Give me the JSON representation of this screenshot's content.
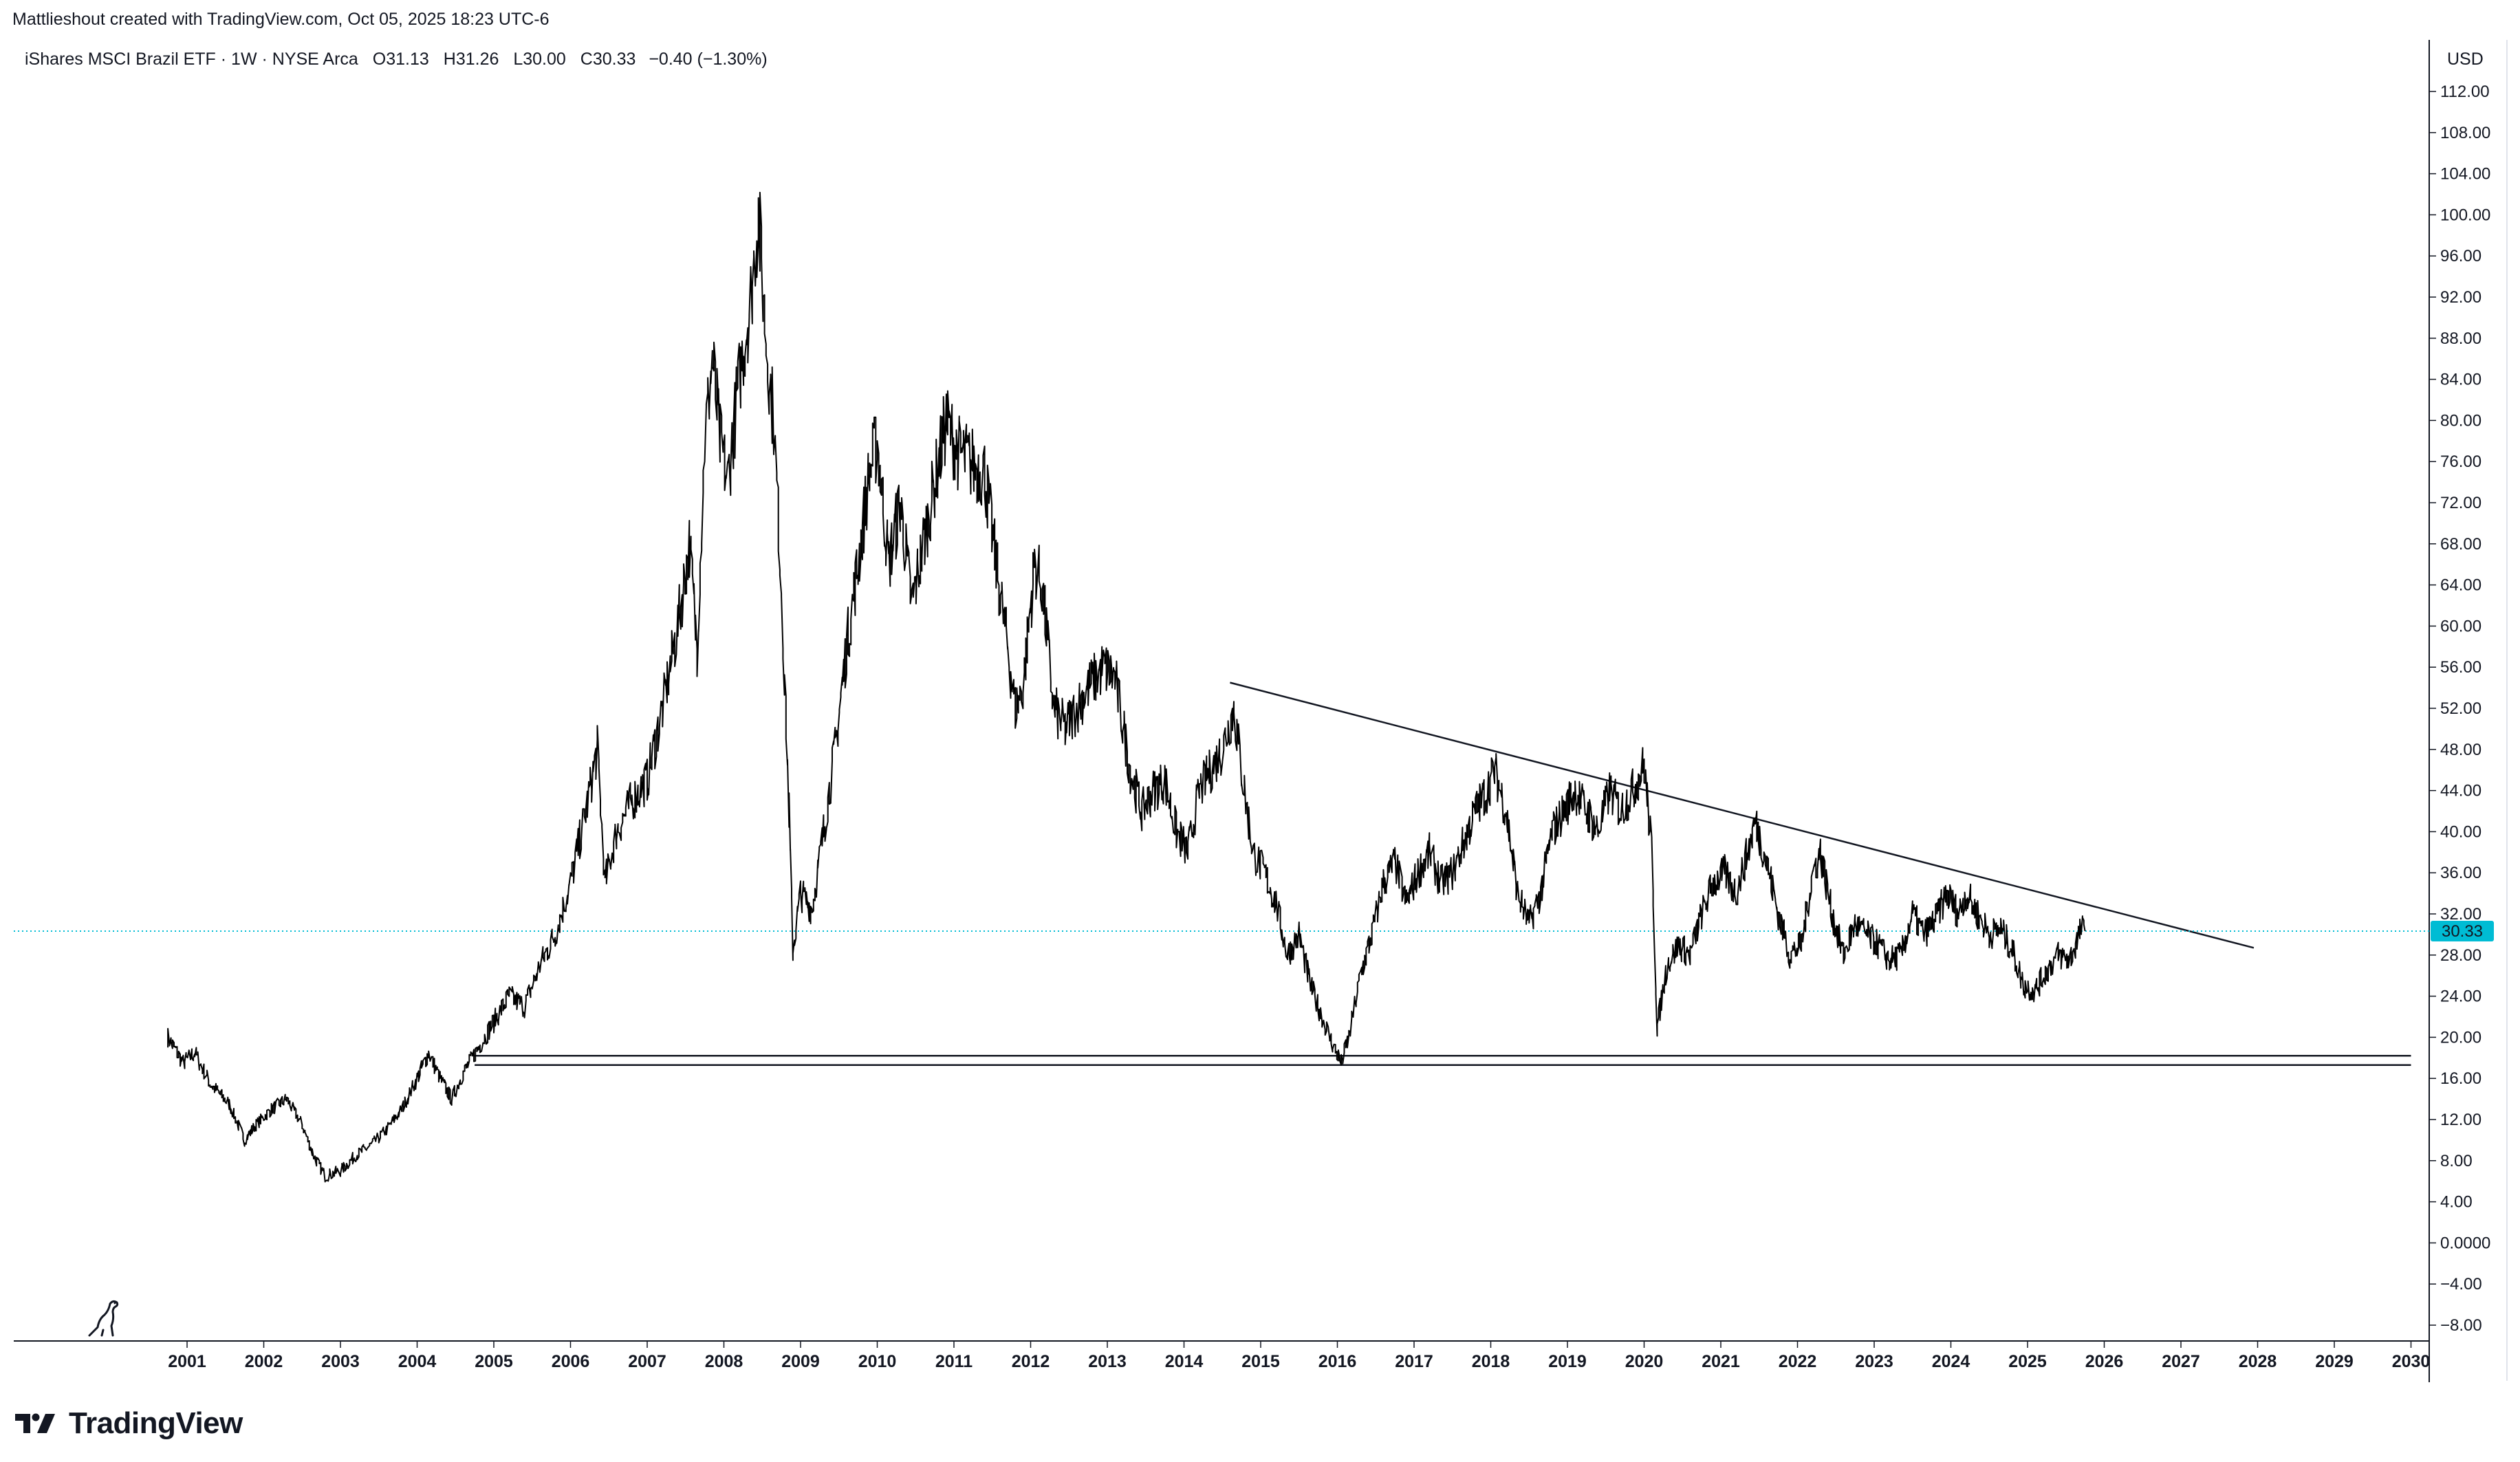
{
  "header": {
    "credit": "Mattlieshout created with TradingView.com, Oct 05, 2025 18:23 UTC-6"
  },
  "legend": {
    "symbol": "iShares MSCI Brazil ETF · 1W · NYSE Arca",
    "open_label": "O",
    "open": "31.13",
    "high_label": "H",
    "high": "31.26",
    "low_label": "L",
    "low": "30.00",
    "close_label": "C",
    "close": "30.33",
    "change": "−0.40 (−1.30%)"
  },
  "axis": {
    "currency": "USD",
    "last_price_label": "30.33"
  },
  "brand": {
    "name": "TradingView",
    "logo_icon": "tradingview-logo-icon",
    "footer_icon": "dinosaur-icon"
  },
  "colors": {
    "price_line": "#000000",
    "last_price_badge": "#00bcd4",
    "last_price_dotted": "#00bcd4",
    "grid_border": "#e0e3eb"
  },
  "chart_data": {
    "type": "line",
    "title": "iShares MSCI Brazil ETF · 1W · NYSE Arca",
    "xlabel": "",
    "ylabel": "USD",
    "xlim": [
      2000.0,
      2030.0
    ],
    "ylim": [
      -8,
      112
    ],
    "x_ticks": [
      "2001",
      "2002",
      "2003",
      "2004",
      "2005",
      "2006",
      "2007",
      "2008",
      "2009",
      "2010",
      "2011",
      "2012",
      "2013",
      "2014",
      "2015",
      "2016",
      "2017",
      "2018",
      "2019",
      "2020",
      "2021",
      "2022",
      "2023",
      "2024",
      "2025",
      "2026",
      "2027",
      "2028",
      "2029",
      "2030"
    ],
    "y_ticks": [
      "112.00",
      "108.00",
      "104.00",
      "100.00",
      "96.00",
      "92.00",
      "88.00",
      "84.00",
      "80.00",
      "76.00",
      "72.00",
      "68.00",
      "64.00",
      "60.00",
      "56.00",
      "52.00",
      "48.00",
      "44.00",
      "40.00",
      "36.00",
      "32.00",
      "28.00",
      "24.00",
      "20.00",
      "16.00",
      "12.00",
      "8.00",
      "4.00",
      "0.0000",
      "−4.00",
      "−8.00"
    ],
    "grid": false,
    "series": [
      {
        "name": "",
        "values": [
          [
            2000.75,
            20.0
          ],
          [
            2000.95,
            17.5
          ],
          [
            2001.1,
            18.5
          ],
          [
            2001.3,
            15.5
          ],
          [
            2001.55,
            13.5
          ],
          [
            2001.75,
            10.0
          ],
          [
            2001.9,
            11.5
          ],
          [
            2002.1,
            13.0
          ],
          [
            2002.3,
            14.0
          ],
          [
            2002.5,
            11.5
          ],
          [
            2002.65,
            8.5
          ],
          [
            2002.8,
            6.5
          ],
          [
            2003.0,
            7.0
          ],
          [
            2003.2,
            8.5
          ],
          [
            2003.4,
            9.5
          ],
          [
            2003.6,
            11.0
          ],
          [
            2003.8,
            13.0
          ],
          [
            2004.0,
            16.0
          ],
          [
            2004.15,
            18.5
          ],
          [
            2004.3,
            16.0
          ],
          [
            2004.45,
            14.0
          ],
          [
            2004.6,
            16.5
          ],
          [
            2004.8,
            19.0
          ],
          [
            2005.0,
            21.5
          ],
          [
            2005.2,
            24.0
          ],
          [
            2005.4,
            23.0
          ],
          [
            2005.6,
            27.0
          ],
          [
            2005.8,
            30.0
          ],
          [
            2006.0,
            35.0
          ],
          [
            2006.2,
            42.0
          ],
          [
            2006.35,
            48.0
          ],
          [
            2006.45,
            35.0
          ],
          [
            2006.6,
            40.0
          ],
          [
            2006.8,
            43.0
          ],
          [
            2007.0,
            45.0
          ],
          [
            2007.2,
            52.0
          ],
          [
            2007.4,
            60.0
          ],
          [
            2007.55,
            68.0
          ],
          [
            2007.65,
            58.0
          ],
          [
            2007.75,
            78.0
          ],
          [
            2007.85,
            86.0
          ],
          [
            2007.95,
            78.0
          ],
          [
            2008.05,
            74.0
          ],
          [
            2008.2,
            84.0
          ],
          [
            2008.35,
            92.0
          ],
          [
            2008.45,
            100.0
          ],
          [
            2008.55,
            88.0
          ],
          [
            2008.65,
            80.0
          ],
          [
            2008.75,
            64.0
          ],
          [
            2008.85,
            42.0
          ],
          [
            2008.9,
            28.5
          ],
          [
            2009.0,
            34.0
          ],
          [
            2009.15,
            32.5
          ],
          [
            2009.3,
            40.0
          ],
          [
            2009.45,
            48.0
          ],
          [
            2009.6,
            58.0
          ],
          [
            2009.75,
            66.0
          ],
          [
            2009.9,
            75.0
          ],
          [
            2010.0,
            78.0
          ],
          [
            2010.15,
            66.0
          ],
          [
            2010.3,
            72.0
          ],
          [
            2010.45,
            62.0
          ],
          [
            2010.6,
            68.0
          ],
          [
            2010.75,
            74.0
          ],
          [
            2010.9,
            80.0
          ],
          [
            2011.05,
            77.0
          ],
          [
            2011.2,
            76.0
          ],
          [
            2011.4,
            75.0
          ],
          [
            2011.55,
            66.0
          ],
          [
            2011.7,
            58.0
          ],
          [
            2011.8,
            52.0
          ],
          [
            2011.9,
            54.0
          ],
          [
            2012.05,
            66.0
          ],
          [
            2012.15,
            64.0
          ],
          [
            2012.3,
            52.0
          ],
          [
            2012.45,
            50.0
          ],
          [
            2012.6,
            52.0
          ],
          [
            2012.75,
            54.0
          ],
          [
            2012.95,
            56.0
          ],
          [
            2013.1,
            55.0
          ],
          [
            2013.3,
            46.0
          ],
          [
            2013.45,
            42.0
          ],
          [
            2013.6,
            44.0
          ],
          [
            2013.75,
            45.0
          ],
          [
            2013.9,
            40.0
          ],
          [
            2014.05,
            38.0
          ],
          [
            2014.2,
            44.0
          ],
          [
            2014.35,
            46.0
          ],
          [
            2014.5,
            48.0
          ],
          [
            2014.65,
            52.0
          ],
          [
            2014.75,
            46.0
          ],
          [
            2014.9,
            38.0
          ],
          [
            2015.05,
            36.0
          ],
          [
            2015.2,
            33.0
          ],
          [
            2015.35,
            28.0
          ],
          [
            2015.5,
            30.0
          ],
          [
            2015.65,
            25.0
          ],
          [
            2015.8,
            22.0
          ],
          [
            2015.9,
            20.0
          ],
          [
            2016.05,
            17.5
          ],
          [
            2016.15,
            20.0
          ],
          [
            2016.3,
            26.0
          ],
          [
            2016.45,
            30.0
          ],
          [
            2016.6,
            35.0
          ],
          [
            2016.75,
            37.0
          ],
          [
            2016.9,
            33.0
          ],
          [
            2017.05,
            36.0
          ],
          [
            2017.2,
            38.0
          ],
          [
            2017.35,
            35.0
          ],
          [
            2017.5,
            36.0
          ],
          [
            2017.65,
            39.0
          ],
          [
            2017.8,
            42.0
          ],
          [
            2017.95,
            44.0
          ],
          [
            2018.05,
            46.0
          ],
          [
            2018.2,
            42.0
          ],
          [
            2018.35,
            34.0
          ],
          [
            2018.5,
            31.0
          ],
          [
            2018.65,
            34.0
          ],
          [
            2018.8,
            40.0
          ],
          [
            2018.95,
            42.0
          ],
          [
            2019.1,
            44.0
          ],
          [
            2019.25,
            42.0
          ],
          [
            2019.4,
            40.0
          ],
          [
            2019.55,
            44.0
          ],
          [
            2019.7,
            42.0
          ],
          [
            2019.85,
            44.0
          ],
          [
            2020.0,
            46.5
          ],
          [
            2020.1,
            38.0
          ],
          [
            2020.17,
            21.0
          ],
          [
            2020.3,
            27.0
          ],
          [
            2020.45,
            29.0
          ],
          [
            2020.6,
            28.0
          ],
          [
            2020.75,
            32.0
          ],
          [
            2020.9,
            35.0
          ],
          [
            2021.05,
            36.0
          ],
          [
            2021.2,
            34.0
          ],
          [
            2021.35,
            38.0
          ],
          [
            2021.45,
            41.0
          ],
          [
            2021.6,
            37.0
          ],
          [
            2021.75,
            32.0
          ],
          [
            2021.9,
            28.0
          ],
          [
            2022.05,
            29.0
          ],
          [
            2022.2,
            36.0
          ],
          [
            2022.3,
            38.0
          ],
          [
            2022.45,
            32.0
          ],
          [
            2022.6,
            28.0
          ],
          [
            2022.75,
            31.0
          ],
          [
            2022.9,
            30.0
          ],
          [
            2023.05,
            29.0
          ],
          [
            2023.2,
            27.5
          ],
          [
            2023.35,
            28.0
          ],
          [
            2023.5,
            32.0
          ],
          [
            2023.65,
            30.0
          ],
          [
            2023.8,
            31.5
          ],
          [
            2023.95,
            34.0
          ],
          [
            2024.1,
            32.0
          ],
          [
            2024.2,
            34.0
          ],
          [
            2024.35,
            32.0
          ],
          [
            2024.5,
            30.0
          ],
          [
            2024.65,
            30.5
          ],
          [
            2024.8,
            28.5
          ],
          [
            2024.95,
            25.0
          ],
          [
            2025.1,
            24.5
          ],
          [
            2025.25,
            26.5
          ],
          [
            2025.4,
            28.0
          ],
          [
            2025.55,
            27.5
          ],
          [
            2025.7,
            30.5
          ],
          [
            2025.75,
            30.33
          ]
        ]
      }
    ],
    "trendlines": [
      {
        "from": [
          2014.6,
          54.5
        ],
        "to": [
          2027.95,
          28.7
        ]
      },
      {
        "from": [
          2004.75,
          18.2
        ],
        "to": [
          2030.0,
          18.2
        ]
      },
      {
        "from": [
          2004.75,
          17.3
        ],
        "to": [
          2030.0,
          17.3
        ]
      }
    ],
    "last_price": 30.33
  }
}
